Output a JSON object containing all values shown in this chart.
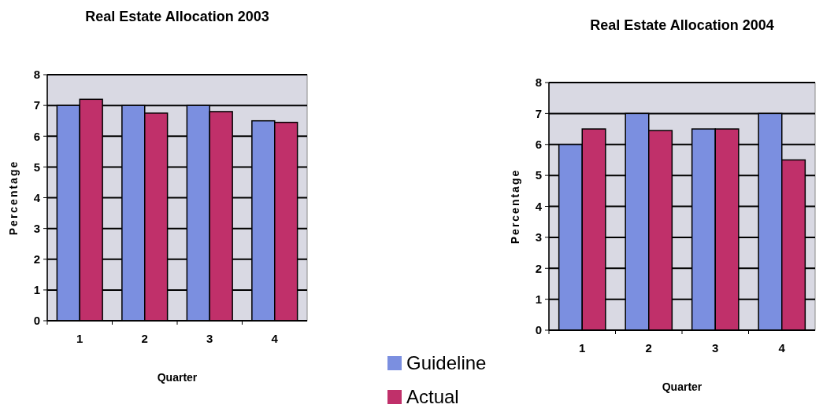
{
  "chart_data": [
    {
      "type": "bar",
      "title": "Real Estate Allocation 2003",
      "xlabel": "Quarter",
      "ylabel": "Percentage",
      "categories": [
        "1",
        "2",
        "3",
        "4"
      ],
      "series": [
        {
          "name": "Guideline",
          "color": "#7b8fe0",
          "values": [
            7,
            7,
            7,
            6.5
          ]
        },
        {
          "name": "Actual",
          "color": "#c0306a",
          "values": [
            7.2,
            6.75,
            6.8,
            6.45
          ]
        }
      ],
      "ylim": [
        0,
        8
      ],
      "yticks": [
        0,
        1,
        2,
        3,
        4,
        5,
        6,
        7,
        8
      ],
      "grid": "y",
      "legend": "bottom right"
    },
    {
      "type": "bar",
      "title": "Real Estate Allocation 2004",
      "xlabel": "Quarter",
      "ylabel": "Percentage",
      "categories": [
        "1",
        "2",
        "3",
        "4"
      ],
      "series": [
        {
          "color": "#7b8fe0",
          "values": [
            6,
            7,
            6.5,
            7
          ]
        },
        {
          "color": "#c0306a",
          "values": [
            6.5,
            6.45,
            6.5,
            5.5
          ]
        }
      ],
      "ylim": [
        0,
        8
      ],
      "yticks": [
        0,
        1,
        2,
        3,
        4,
        5,
        6,
        7,
        8
      ],
      "grid": "y"
    }
  ]
}
